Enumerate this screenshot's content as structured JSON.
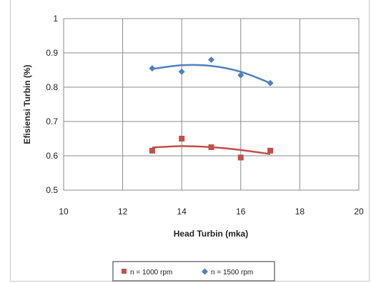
{
  "chart_data": {
    "type": "scatter",
    "xlabel": "Head Turbin (mka)",
    "ylabel": "Efisiensi Turbin (%)",
    "xlim": [
      10,
      20
    ],
    "ylim": [
      0.5,
      1
    ],
    "xticks": [
      "10",
      "12",
      "14",
      "16",
      "18",
      "20"
    ],
    "yticks": [
      "0.5",
      "0.6",
      "0.7",
      "0.8",
      "0.9",
      "1"
    ],
    "grid": true,
    "legend_position": "bottom",
    "series": [
      {
        "name": "n = 1000 rpm",
        "marker": "square",
        "color": "#c0504d",
        "x": [
          13,
          14,
          15,
          16,
          17
        ],
        "y": [
          0.615,
          0.65,
          0.625,
          0.595,
          0.615
        ],
        "trend_x": [
          13,
          14,
          15,
          16,
          17
        ],
        "trend_y": [
          0.624,
          0.628,
          0.625,
          0.617,
          0.605
        ]
      },
      {
        "name": "n = 1500 rpm",
        "marker": "diamond",
        "color": "#4f81bd",
        "x": [
          13,
          14,
          15,
          16,
          17
        ],
        "y": [
          0.855,
          0.845,
          0.88,
          0.835,
          0.812
        ],
        "trend_x": [
          13,
          14,
          15,
          16,
          17
        ],
        "trend_y": [
          0.853,
          0.864,
          0.862,
          0.845,
          0.812
        ]
      }
    ]
  }
}
